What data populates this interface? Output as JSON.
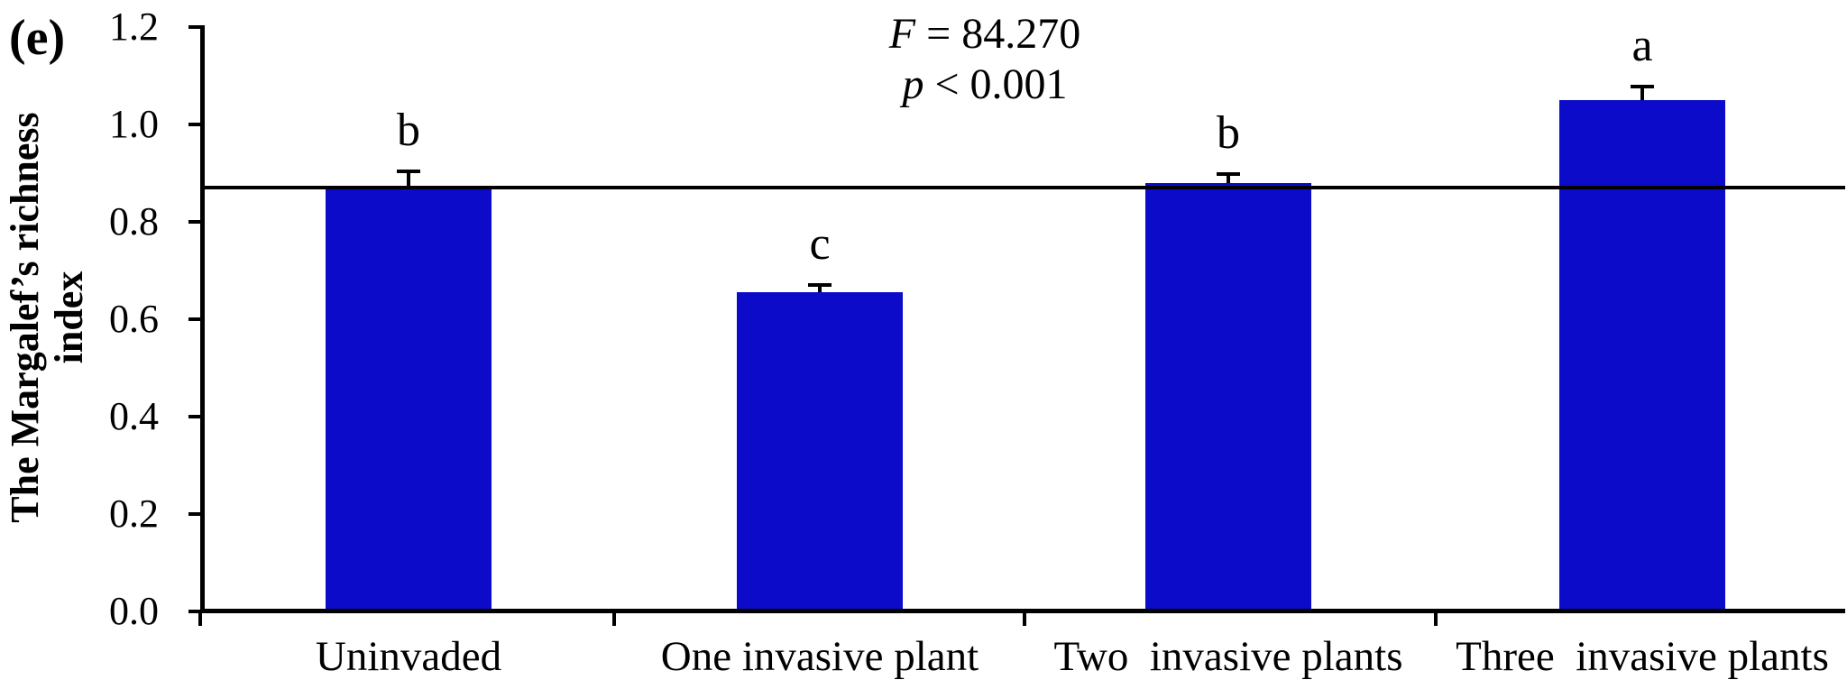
{
  "panel_label": "(e)",
  "y_axis": {
    "label_line1": "The Margalef’s richness",
    "label_line2": "index"
  },
  "annotation": {
    "stat_var": "F",
    "stat_rest": " = 84.270",
    "p_var": "p",
    "p_rest": " < 0.001"
  },
  "chart_data": {
    "type": "bar",
    "title": "",
    "xlabel": "",
    "ylabel": "The Margalef’s richness index",
    "categories": [
      "Uninvaded",
      "One invasive plant",
      "Two  invasive plants",
      "Three  invasive plants"
    ],
    "values": [
      0.87,
      0.655,
      0.88,
      1.05
    ],
    "errors_upper": [
      0.034,
      0.015,
      0.018,
      0.027
    ],
    "sig_letters": [
      "b",
      "c",
      "b",
      "a"
    ],
    "annotation_lines": [
      "F = 84.270",
      "p < 0.001"
    ],
    "reference_line_y": 0.87,
    "ylim": [
      0.0,
      1.2
    ],
    "yticks": [
      "0.0",
      "0.2",
      "0.4",
      "0.6",
      "0.8",
      "1.0",
      "1.2"
    ],
    "grid": false,
    "legend": "none",
    "bar_color": "#0b0bc9",
    "axis_color": "#000000"
  }
}
